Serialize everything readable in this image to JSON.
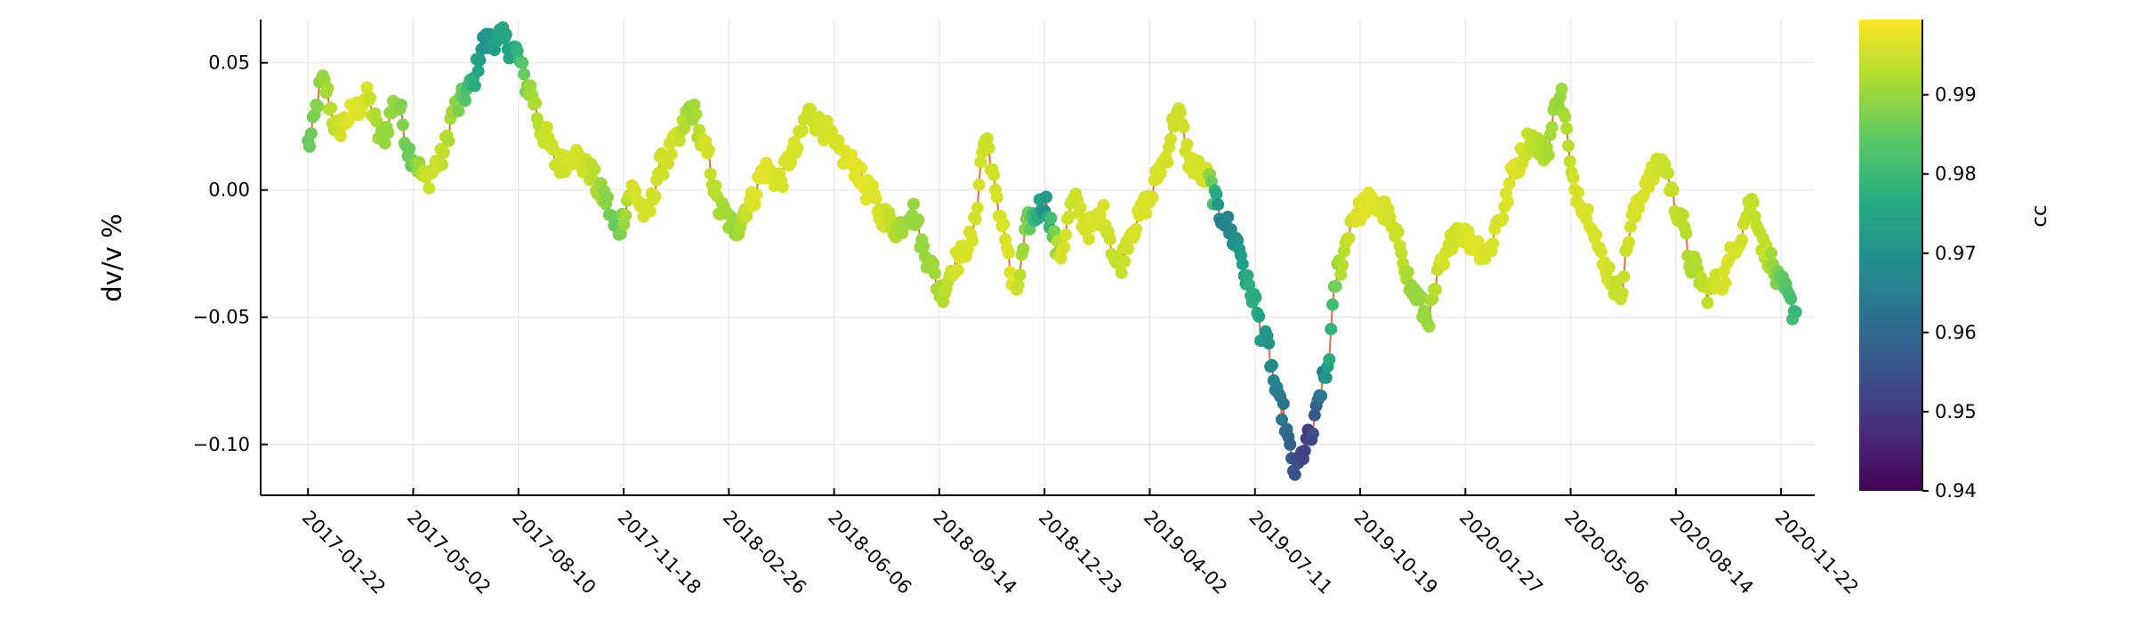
{
  "chart_data": {
    "type": "scatter",
    "ylabel": "dv/v %",
    "ylim": [
      -0.12,
      0.067
    ],
    "yticks": [
      {
        "value": 0.05,
        "label": "0.05"
      },
      {
        "value": 0.0,
        "label": "0.00"
      },
      {
        "value": -0.05,
        "label": "−0.05"
      },
      {
        "value": -0.1,
        "label": "−0.10"
      }
    ],
    "xticks": [
      "2017-01-22",
      "2017-05-02",
      "2017-08-10",
      "2017-11-18",
      "2018-02-26",
      "2018-06-06",
      "2018-09-14",
      "2018-12-23",
      "2019-04-02",
      "2019-07-11",
      "2019-10-19",
      "2020-01-27",
      "2020-05-06",
      "2020-08-14",
      "2020-11-22"
    ],
    "xlim": [
      "2016-12-08",
      "2020-12-24"
    ],
    "line_color": "#e26f46",
    "grid": true,
    "colorbar": {
      "label": "cc",
      "range": [
        0.94,
        0.9995
      ],
      "ticks": [
        "0.94",
        "0.95",
        "0.96",
        "0.97",
        "0.98",
        "0.99"
      ],
      "tick_values": [
        0.94,
        0.95,
        0.96,
        0.97,
        0.98,
        0.99
      ],
      "colormap": "viridis"
    },
    "series": [
      {
        "x": [
          "2017-01-22",
          "2017-02-05",
          "2017-02-19",
          "2017-03-05",
          "2017-03-19",
          "2017-04-02",
          "2017-04-16",
          "2017-04-30",
          "2017-05-14",
          "2017-05-28",
          "2017-06-11",
          "2017-06-25",
          "2017-07-09",
          "2017-07-23",
          "2017-08-06",
          "2017-08-20",
          "2017-09-03",
          "2017-09-17",
          "2017-10-01",
          "2017-10-15",
          "2017-10-29",
          "2017-11-12",
          "2017-11-26",
          "2017-12-10",
          "2017-12-24",
          "2018-01-07",
          "2018-01-21",
          "2018-02-04",
          "2018-02-18",
          "2018-03-04",
          "2018-03-18",
          "2018-04-01",
          "2018-04-15",
          "2018-04-29",
          "2018-05-13",
          "2018-05-27",
          "2018-06-10",
          "2018-06-24",
          "2018-07-08",
          "2018-07-22",
          "2018-08-05",
          "2018-08-19",
          "2018-09-02",
          "2018-09-16",
          "2018-09-30",
          "2018-10-14",
          "2018-10-28",
          "2018-11-11",
          "2018-11-25",
          "2018-12-09",
          "2018-12-23",
          "2019-01-06",
          "2019-01-20",
          "2019-02-03",
          "2019-02-17",
          "2019-03-03",
          "2019-03-17",
          "2019-03-31",
          "2019-04-14",
          "2019-04-28",
          "2019-05-12",
          "2019-05-26",
          "2019-06-09",
          "2019-06-23",
          "2019-07-07",
          "2019-07-21",
          "2019-08-04",
          "2019-08-18",
          "2019-09-01",
          "2019-09-15",
          "2019-09-29",
          "2019-10-13",
          "2019-10-27",
          "2019-11-10",
          "2019-11-24",
          "2019-12-08",
          "2019-12-22",
          "2020-01-05",
          "2020-01-19",
          "2020-02-02",
          "2020-02-16",
          "2020-03-01",
          "2020-03-15",
          "2020-03-29",
          "2020-04-12",
          "2020-04-26",
          "2020-05-10",
          "2020-05-24",
          "2020-06-07",
          "2020-06-21",
          "2020-07-05",
          "2020-07-19",
          "2020-08-02",
          "2020-08-16",
          "2020-08-30",
          "2020-09-13",
          "2020-09-27",
          "2020-10-11",
          "2020-10-25",
          "2020-11-08",
          "2020-11-22",
          "2020-12-06"
        ],
        "y": [
          0.018,
          0.042,
          0.024,
          0.03,
          0.036,
          0.02,
          0.035,
          0.014,
          0.004,
          0.012,
          0.032,
          0.04,
          0.058,
          0.06,
          0.055,
          0.04,
          0.022,
          0.01,
          0.014,
          0.008,
          -0.002,
          -0.016,
          0.0,
          -0.01,
          0.01,
          0.018,
          0.032,
          0.015,
          -0.008,
          -0.015,
          -0.005,
          0.008,
          0.004,
          0.015,
          0.03,
          0.024,
          0.015,
          0.01,
          0.0,
          -0.01,
          -0.015,
          -0.008,
          -0.026,
          -0.04,
          -0.028,
          -0.02,
          0.02,
          -0.01,
          -0.04,
          -0.012,
          -0.005,
          -0.025,
          -0.005,
          -0.015,
          -0.01,
          -0.03,
          -0.015,
          -0.005,
          0.01,
          0.03,
          0.01,
          0.005,
          -0.01,
          -0.02,
          -0.04,
          -0.06,
          -0.085,
          -0.11,
          -0.098,
          -0.075,
          -0.03,
          -0.01,
          -0.005,
          -0.008,
          -0.02,
          -0.04,
          -0.05,
          -0.03,
          -0.015,
          -0.02,
          -0.025,
          -0.01,
          0.01,
          0.02,
          0.015,
          0.038,
          0.0,
          -0.01,
          -0.03,
          -0.04,
          -0.01,
          0.005,
          0.01,
          -0.008,
          -0.03,
          -0.04,
          -0.035,
          -0.02,
          -0.005,
          -0.025,
          -0.038,
          -0.048
        ],
        "cc": [
          0.985,
          0.99,
          0.995,
          0.997,
          0.996,
          0.99,
          0.99,
          0.985,
          0.995,
          0.995,
          0.99,
          0.98,
          0.97,
          0.975,
          0.975,
          0.99,
          0.995,
          0.995,
          0.996,
          0.995,
          0.99,
          0.985,
          0.996,
          0.996,
          0.995,
          0.996,
          0.99,
          0.996,
          0.992,
          0.99,
          0.996,
          0.997,
          0.996,
          0.996,
          0.995,
          0.996,
          0.996,
          0.997,
          0.997,
          0.996,
          0.992,
          0.99,
          0.99,
          0.992,
          0.996,
          0.996,
          0.995,
          0.996,
          0.997,
          0.985,
          0.97,
          0.996,
          0.995,
          0.996,
          0.996,
          0.994,
          0.996,
          0.996,
          0.996,
          0.995,
          0.996,
          0.996,
          0.965,
          0.97,
          0.978,
          0.972,
          0.965,
          0.955,
          0.95,
          0.968,
          0.992,
          0.996,
          0.997,
          0.996,
          0.995,
          0.99,
          0.99,
          0.996,
          0.995,
          0.997,
          0.996,
          0.996,
          0.997,
          0.994,
          0.992,
          0.99,
          0.996,
          0.996,
          0.996,
          0.994,
          0.996,
          0.996,
          0.995,
          0.994,
          0.992,
          0.994,
          0.996,
          0.996,
          0.994,
          0.994,
          0.985,
          0.98
        ]
      }
    ]
  }
}
